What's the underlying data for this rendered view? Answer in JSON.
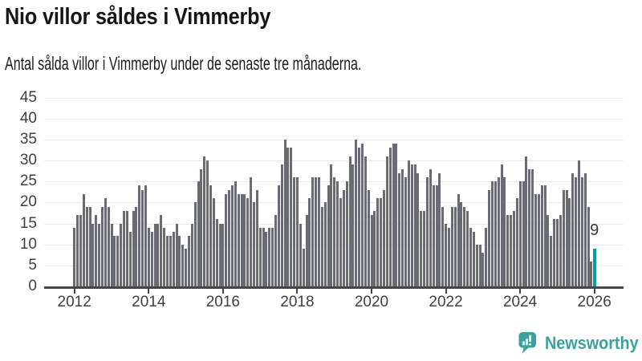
{
  "title": "Nio villor såldes i Vimmerby",
  "subtitle": "Antal sålda villor i Vimmerby under de senaste tre månaderna.",
  "logo": {
    "text": "Newsworthy"
  },
  "colors": {
    "bar": "#6a6a73",
    "highlight": "#00a09b",
    "axis": "#464646",
    "grid": "#e9e9e9",
    "tick_label": "#3f3f3f",
    "logo": "#3aa39d"
  },
  "chart_data": {
    "type": "bar",
    "title": "Nio villor såldes i Vimmerby",
    "subtitle": "Antal sålda villor i Vimmerby under de senaste tre månaderna.",
    "x_start": "2012-01",
    "frequency": "monthly",
    "unit": "sålda villor (rullande tre månader)",
    "ylim": [
      0,
      45
    ],
    "y_ticks": [
      0,
      5,
      10,
      15,
      20,
      25,
      30,
      35,
      40,
      45
    ],
    "x_tick_years": [
      2012,
      2014,
      2016,
      2018,
      2020,
      2022,
      2024,
      2026
    ],
    "grid": true,
    "highlight_index": 168,
    "highlight_value": 9,
    "highlight_label": "9",
    "values": [
      14,
      17,
      17,
      22,
      19,
      19,
      15,
      17,
      15,
      19,
      21,
      19,
      15,
      12,
      12,
      15,
      18,
      18,
      13,
      18,
      19,
      24,
      23,
      24,
      14,
      13,
      15,
      15,
      17,
      14,
      12,
      12,
      13,
      15,
      12,
      10,
      9,
      12,
      15,
      20,
      25,
      28,
      31,
      30,
      24,
      21,
      16,
      15,
      15,
      22,
      23,
      24,
      25,
      22,
      22,
      22,
      21,
      26,
      20,
      23,
      14,
      14,
      13,
      14,
      14,
      17,
      24,
      29,
      35,
      33,
      33,
      26,
      26,
      15,
      9,
      17,
      21,
      26,
      26,
      26,
      19,
      20,
      24,
      29,
      26,
      25,
      21,
      23,
      25,
      31,
      29,
      35,
      33,
      34,
      31,
      23,
      17,
      18,
      21,
      21,
      23,
      31,
      33,
      34,
      34,
      27,
      28,
      26,
      30,
      29,
      29,
      27,
      18,
      18,
      26,
      28,
      24,
      24,
      27,
      19,
      15,
      14,
      19,
      19,
      22,
      20,
      19,
      18,
      14,
      13,
      10,
      10,
      8,
      14,
      23,
      25,
      25,
      26,
      29,
      26,
      17,
      17,
      18,
      21,
      25,
      25,
      31,
      28,
      28,
      22,
      22,
      24,
      24,
      17,
      12,
      16,
      16,
      17,
      23,
      23,
      21,
      27,
      26,
      30,
      26,
      27,
      19,
      6,
      9
    ]
  }
}
